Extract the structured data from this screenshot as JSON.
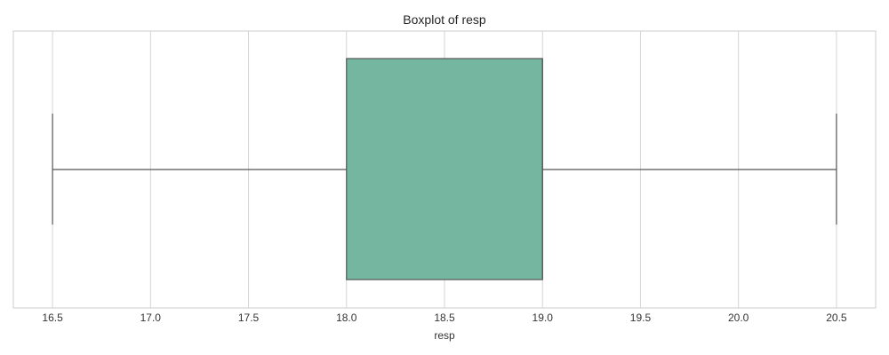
{
  "chart_data": {
    "type": "boxplot",
    "title": "Boxplot of resp",
    "xlabel": "resp",
    "ylabel": "",
    "orientation": "horizontal",
    "xlim": [
      16.3,
      20.7
    ],
    "xticks": [
      16.5,
      17.0,
      17.5,
      18.0,
      18.5,
      19.0,
      19.5,
      20.0,
      20.5
    ],
    "xtick_labels": [
      "16.5",
      "17.0",
      "17.5",
      "18.0",
      "18.5",
      "19.0",
      "19.5",
      "20.0",
      "20.5"
    ],
    "grid": true,
    "box": {
      "whisker_low": 16.5,
      "q1": 18.0,
      "median": 19.0,
      "q3": 19.0,
      "whisker_high": 20.5
    },
    "colors": {
      "box_fill": "#74b6a0",
      "box_edge": "#555555",
      "grid": "#d5d5d5",
      "frame": "#cccccc"
    }
  }
}
